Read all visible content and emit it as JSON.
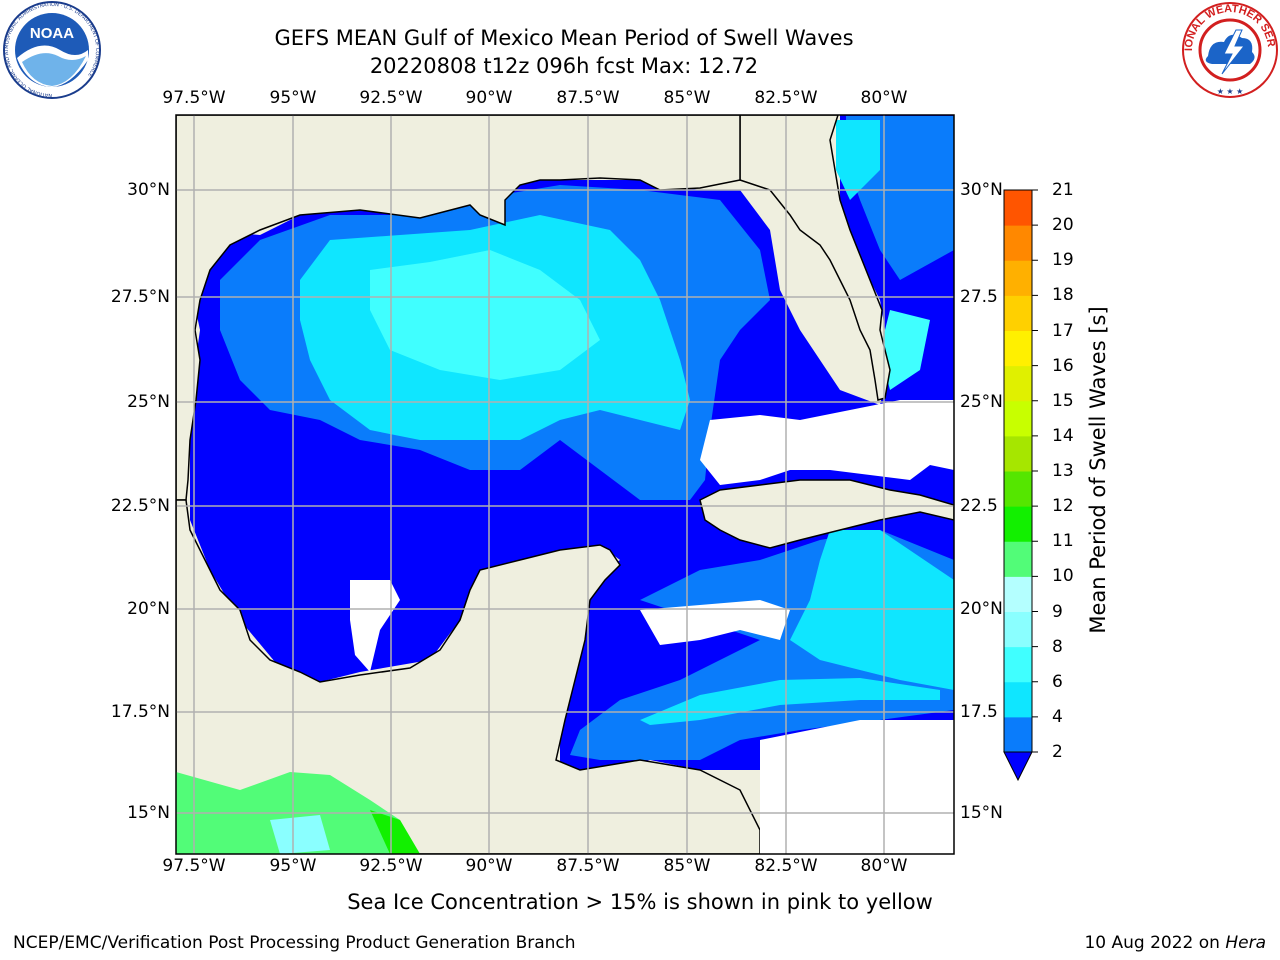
{
  "title": {
    "line1": "GEFS MEAN Gulf of Mexico Mean Period of Swell Waves",
    "line2": "20220808 t12z 096h fcst   Max: 12.72"
  },
  "axes": {
    "lon_labels": [
      "97.5°W",
      "95°W",
      "92.5°W",
      "90°W",
      "87.5°W",
      "85°W",
      "82.5°W",
      "80°W"
    ],
    "lat_labels_left": [
      "30°N",
      "27.5°N",
      "25°N",
      "22.5°N",
      "20°N",
      "17.5°N",
      "15°N"
    ],
    "lat_labels_right": [
      "30°N",
      "27.5",
      "25°N",
      "22.5",
      "20°N",
      "17.5",
      "15°N"
    ]
  },
  "colorbar": {
    "title": "Mean Period of Swell Waves [s]",
    "ticks": [
      "2",
      "4",
      "6",
      "8",
      "9",
      "10",
      "11",
      "12",
      "13",
      "14",
      "15",
      "16",
      "17",
      "18",
      "19",
      "20",
      "21"
    ],
    "colors": [
      "#0a7cfb",
      "#0fe6ff",
      "#40ffff",
      "#8affff",
      "#b4ffff",
      "#52fc78",
      "#12f000",
      "#55e600",
      "#a6e600",
      "#c8ff00",
      "#e0f000",
      "#fff000",
      "#ffd000",
      "#ffb000",
      "#ff8800",
      "#ff5500",
      "#ff2200",
      "#ff0000"
    ],
    "under_color": "#0000ff"
  },
  "note": "Sea Ice Concentration > 15% is shown in pink to yellow",
  "footer": {
    "credit": "NCEP/EMC/Verification Post Processing Product Generation Branch",
    "date": "10 Aug 2022 on",
    "host": "Hera"
  },
  "logos": {
    "left": "NOAA",
    "left_ring": "NATIONAL OCEANIC AND ATMOSPHERIC ADMINISTRATION · U.S. DEPARTMENT OF COMMERCE",
    "right_ring": "NATIONAL WEATHER SERVICE"
  }
}
